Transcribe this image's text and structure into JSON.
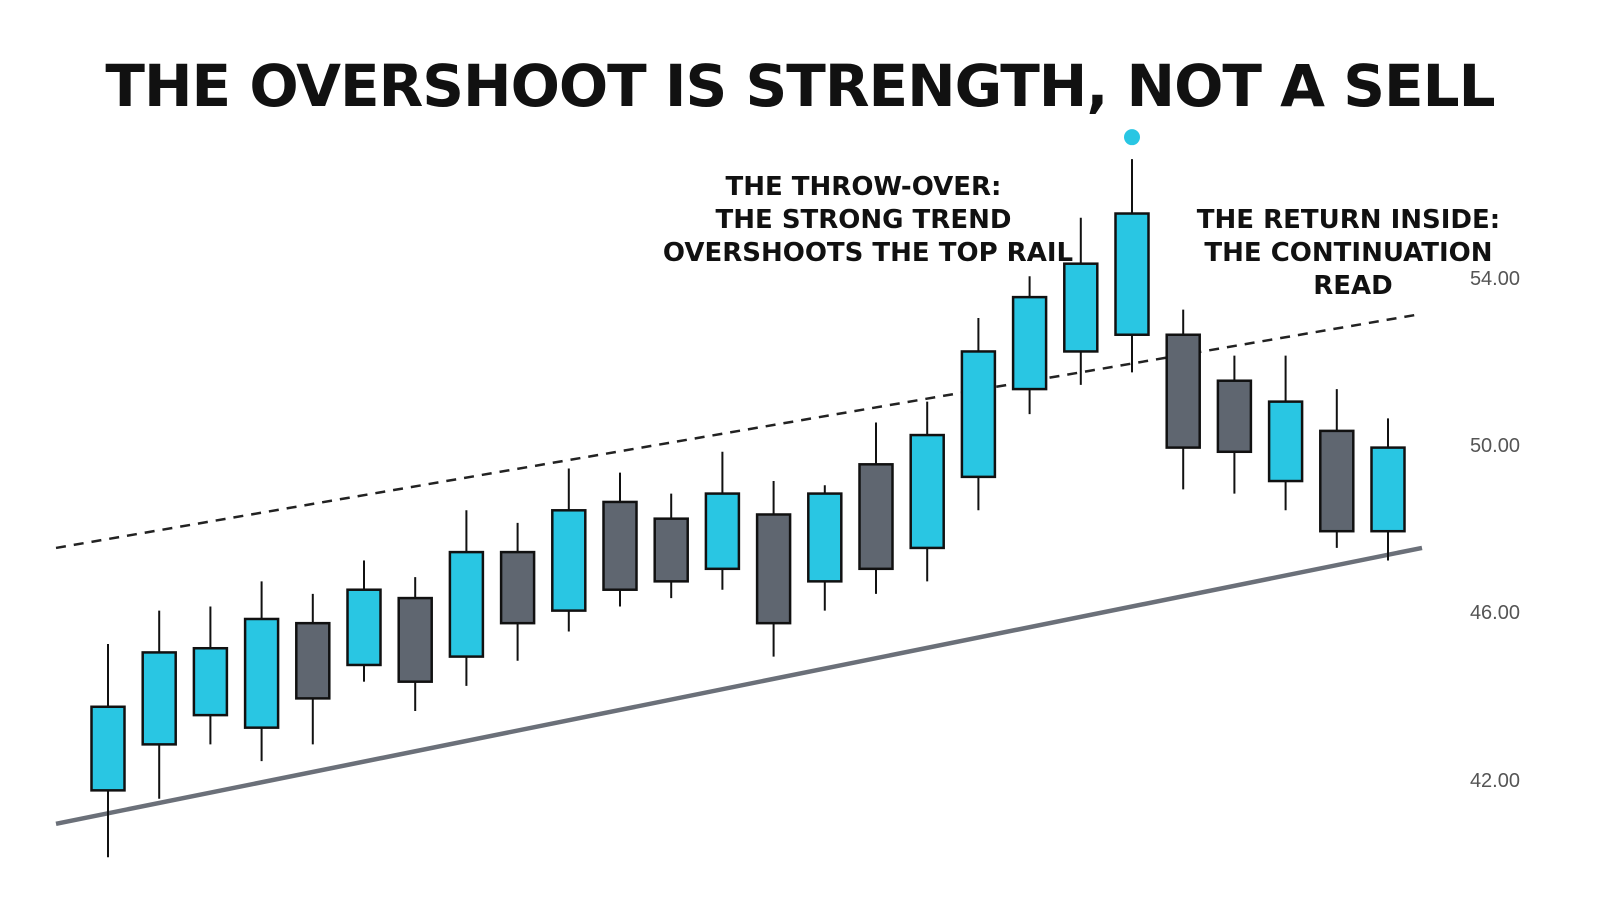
{
  "chart_data": {
    "type": "candlestick",
    "title": "THE OVERSHOOT IS STRENGTH, NOT A SELL",
    "xlabel": "",
    "ylabel": "",
    "ylim": [
      39.5,
      58.3
    ],
    "y_ticks": [
      42,
      46,
      50,
      54
    ],
    "y_tick_labels": [
      "42.00",
      "46.00",
      "50.00",
      "54.00"
    ],
    "grid": false,
    "colors": {
      "up": "#29C6E3",
      "down": "#5F6670",
      "outline": "#111111",
      "support": "#6B7079",
      "resistance": "#222222",
      "marker": "#29C6E3"
    },
    "candles": [
      {
        "open": 41.8,
        "high": 45.3,
        "low": 40.2,
        "close": 43.8
      },
      {
        "open": 42.9,
        "high": 46.1,
        "low": 41.6,
        "close": 45.1
      },
      {
        "open": 43.6,
        "high": 46.2,
        "low": 42.9,
        "close": 45.2
      },
      {
        "open": 43.3,
        "high": 46.8,
        "low": 42.5,
        "close": 45.9
      },
      {
        "open": 45.8,
        "high": 46.5,
        "low": 42.9,
        "close": 44.0
      },
      {
        "open": 44.8,
        "high": 47.3,
        "low": 44.4,
        "close": 46.6
      },
      {
        "open": 46.4,
        "high": 46.9,
        "low": 43.7,
        "close": 44.4
      },
      {
        "open": 45.0,
        "high": 48.5,
        "low": 44.3,
        "close": 47.5
      },
      {
        "open": 47.5,
        "high": 48.2,
        "low": 44.9,
        "close": 45.8
      },
      {
        "open": 46.1,
        "high": 49.5,
        "low": 45.6,
        "close": 48.5
      },
      {
        "open": 48.7,
        "high": 49.4,
        "low": 46.2,
        "close": 46.6
      },
      {
        "open": 48.3,
        "high": 48.9,
        "low": 46.4,
        "close": 46.8
      },
      {
        "open": 47.1,
        "high": 49.9,
        "low": 46.6,
        "close": 48.9
      },
      {
        "open": 48.4,
        "high": 49.2,
        "low": 45.0,
        "close": 45.8
      },
      {
        "open": 46.8,
        "high": 49.1,
        "low": 46.1,
        "close": 48.9
      },
      {
        "open": 49.6,
        "high": 50.6,
        "low": 46.5,
        "close": 47.1
      },
      {
        "open": 47.6,
        "high": 51.1,
        "low": 46.8,
        "close": 50.3
      },
      {
        "open": 49.3,
        "high": 53.1,
        "low": 48.5,
        "close": 52.3
      },
      {
        "open": 51.4,
        "high": 54.1,
        "low": 50.8,
        "close": 53.6
      },
      {
        "open": 52.3,
        "high": 55.5,
        "low": 51.5,
        "close": 54.4
      },
      {
        "open": 52.7,
        "high": 56.9,
        "low": 51.8,
        "close": 55.6
      },
      {
        "open": 52.7,
        "high": 53.3,
        "low": 49.0,
        "close": 50.0
      },
      {
        "open": 51.6,
        "high": 52.2,
        "low": 48.9,
        "close": 49.9
      },
      {
        "open": 49.2,
        "high": 52.2,
        "low": 48.5,
        "close": 51.1
      },
      {
        "open": 50.4,
        "high": 51.4,
        "low": 47.6,
        "close": 48.0
      },
      {
        "open": 48.0,
        "high": 50.7,
        "low": 47.3,
        "close": 50.0
      }
    ],
    "support_line": {
      "start": 41.0,
      "end": 47.6
    },
    "resistance_line": {
      "start": 47.6,
      "end": 53.2
    },
    "marker_candle_index": 20,
    "annotations": [
      {
        "lines": [
          "THE THROW-OVER:",
          "THE STRONG TREND",
          "OVERSHOOTS THE TOP RAIL"
        ],
        "align": "center",
        "position": "above breakout candles"
      },
      {
        "lines": [
          "THE RETURN INSIDE:",
          "THE CONTINUATION",
          "READ"
        ],
        "align": "center",
        "position": "top-right"
      }
    ]
  }
}
